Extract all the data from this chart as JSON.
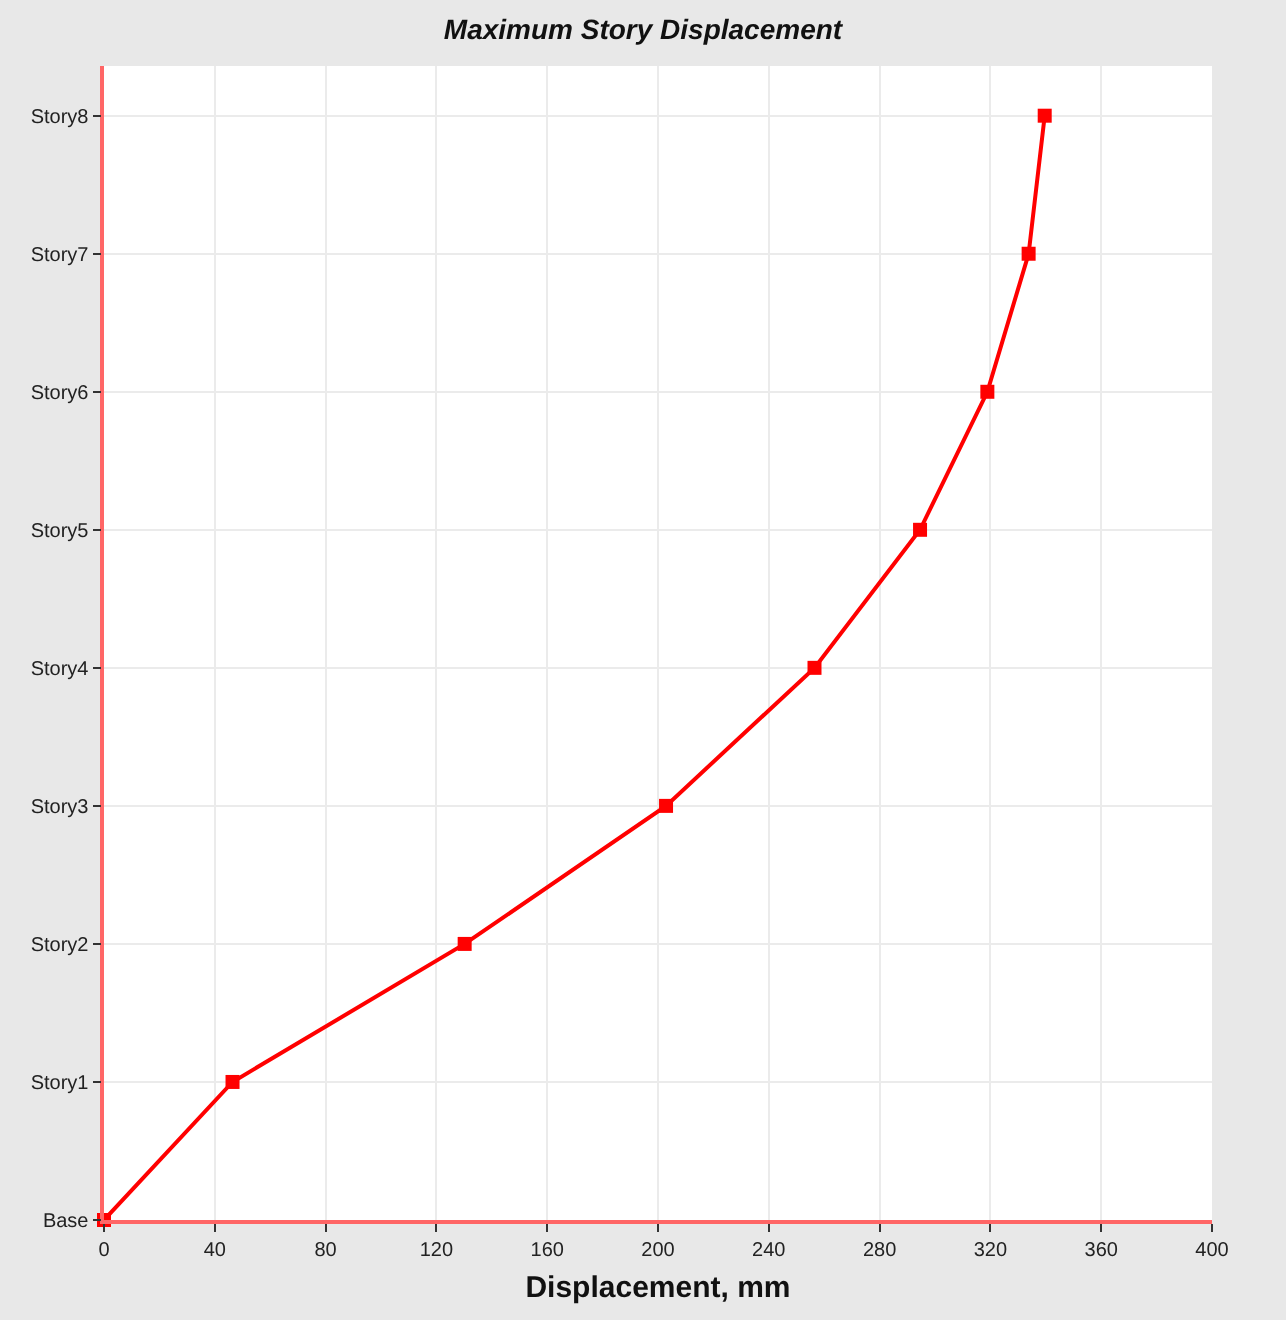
{
  "chart_data": {
    "type": "line",
    "title": "Maximum Story Displacement",
    "xlabel": "Displacement, mm",
    "orientation": "horizontal",
    "categories": [
      "Story8",
      "Story7",
      "Story6",
      "Story5",
      "Story4",
      "Story3",
      "Story2",
      "Story1",
      "Base"
    ],
    "series": [
      {
        "color": "#ff0000",
        "values": [
          339.6,
          333.8,
          318.9,
          294.6,
          256.5,
          202.9,
          130.2,
          46.4,
          0
        ]
      }
    ],
    "xlim": [
      0,
      400
    ],
    "xticks": [
      0,
      40,
      80,
      120,
      160,
      200,
      240,
      280,
      320,
      360,
      400
    ],
    "grid": true,
    "marker": "square",
    "line_style": "solid"
  }
}
